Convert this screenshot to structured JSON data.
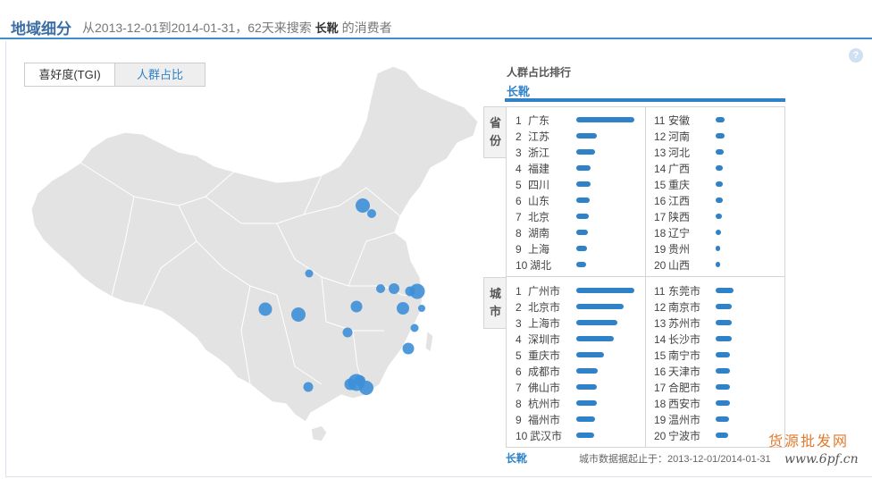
{
  "header": {
    "title": "地域细分",
    "desc_prefix": "从2013-12-01到2014-01-31，62天来搜索",
    "keyword": "长靴",
    "desc_suffix": "的消费者"
  },
  "help": {
    "glyph": "?"
  },
  "tabs": [
    {
      "label": "喜好度(TGI)"
    },
    {
      "label": "人群占比"
    }
  ],
  "ranking": {
    "title": "人群占比排行",
    "keyword": "长靴",
    "province_label": "省份",
    "city_label": "城市",
    "provinces": [
      {
        "rank": "1",
        "name": "广东",
        "value": 100
      },
      {
        "rank": "2",
        "name": "江苏",
        "value": 35
      },
      {
        "rank": "3",
        "name": "浙江",
        "value": 33
      },
      {
        "rank": "4",
        "name": "福建",
        "value": 25
      },
      {
        "rank": "5",
        "name": "四川",
        "value": 24
      },
      {
        "rank": "6",
        "name": "山东",
        "value": 23
      },
      {
        "rank": "7",
        "name": "北京",
        "value": 22
      },
      {
        "rank": "8",
        "name": "湖南",
        "value": 20
      },
      {
        "rank": "9",
        "name": "上海",
        "value": 18
      },
      {
        "rank": "10",
        "name": "湖北",
        "value": 17
      },
      {
        "rank": "11",
        "name": "安徽",
        "value": 15
      },
      {
        "rank": "12",
        "name": "河南",
        "value": 15
      },
      {
        "rank": "13",
        "name": "河北",
        "value": 14
      },
      {
        "rank": "14",
        "name": "广西",
        "value": 13
      },
      {
        "rank": "15",
        "name": "重庆",
        "value": 13
      },
      {
        "rank": "16",
        "name": "江西",
        "value": 12
      },
      {
        "rank": "17",
        "name": "陕西",
        "value": 10
      },
      {
        "rank": "18",
        "name": "辽宁",
        "value": 9
      },
      {
        "rank": "19",
        "name": "贵州",
        "value": 8
      },
      {
        "rank": "20",
        "name": "山西",
        "value": 6
      }
    ],
    "cities": [
      {
        "rank": "1",
        "name": "广州市",
        "value": 100
      },
      {
        "rank": "2",
        "name": "北京市",
        "value": 82
      },
      {
        "rank": "3",
        "name": "上海市",
        "value": 70
      },
      {
        "rank": "4",
        "name": "深圳市",
        "value": 65
      },
      {
        "rank": "5",
        "name": "重庆市",
        "value": 48
      },
      {
        "rank": "6",
        "name": "成都市",
        "value": 37
      },
      {
        "rank": "7",
        "name": "佛山市",
        "value": 36
      },
      {
        "rank": "8",
        "name": "杭州市",
        "value": 35
      },
      {
        "rank": "9",
        "name": "福州市",
        "value": 33
      },
      {
        "rank": "10",
        "name": "武汉市",
        "value": 30
      },
      {
        "rank": "11",
        "name": "东莞市",
        "value": 30
      },
      {
        "rank": "12",
        "name": "南京市",
        "value": 28
      },
      {
        "rank": "13",
        "name": "苏州市",
        "value": 27
      },
      {
        "rank": "14",
        "name": "长沙市",
        "value": 27
      },
      {
        "rank": "15",
        "name": "南宁市",
        "value": 25
      },
      {
        "rank": "16",
        "name": "天津市",
        "value": 25
      },
      {
        "rank": "17",
        "name": "合肥市",
        "value": 24
      },
      {
        "rank": "18",
        "name": "西安市",
        "value": 24
      },
      {
        "rank": "19",
        "name": "温州市",
        "value": 23
      },
      {
        "rank": "20",
        "name": "宁波市",
        "value": 22
      }
    ]
  },
  "footer": {
    "keyword": "长靴",
    "note": "城市数据据起止于：2013-12-01/2014-01-31"
  },
  "watermark": {
    "text": "货源批发网",
    "url": "www.6pf.cn"
  },
  "colors": {
    "accent": "#2f82c8",
    "map_fill": "#e3e3e3",
    "bubble": "#3d8fd8"
  }
}
